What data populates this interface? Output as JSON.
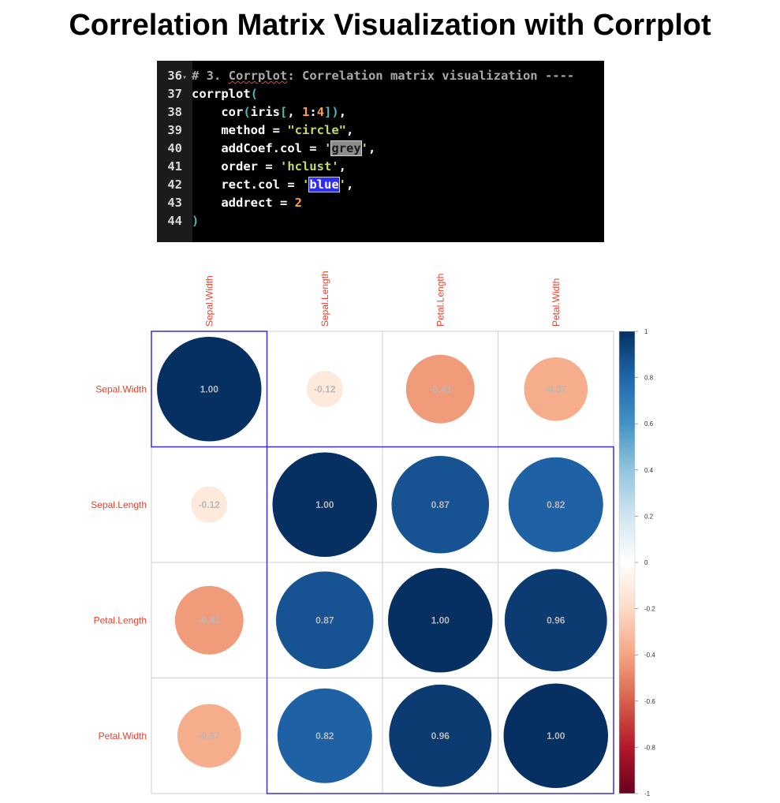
{
  "page": {
    "title": "Correlation Matrix Visualization with Corrplot"
  },
  "code_editor": {
    "lines": [
      {
        "num": "36",
        "fold": "▾",
        "tokens": [
          {
            "t": "# 3. ",
            "c": "tok-comment"
          },
          {
            "t": "Corrplot",
            "c": "tok-comment squiggle"
          },
          {
            "t": ": Correlation matrix visualization ----",
            "c": "tok-comment"
          }
        ]
      },
      {
        "num": "37",
        "fold": "",
        "tokens": [
          {
            "t": "corrplot",
            "c": "tok-plain"
          },
          {
            "t": "(",
            "c": "tok-paren"
          }
        ]
      },
      {
        "num": "38",
        "fold": "",
        "tokens": [
          {
            "t": "    cor",
            "c": "tok-plain"
          },
          {
            "t": "(",
            "c": "tok-paren"
          },
          {
            "t": "iris",
            "c": "tok-plain"
          },
          {
            "t": "[",
            "c": "tok-paren"
          },
          {
            "t": ", ",
            "c": "tok-plain"
          },
          {
            "t": "1",
            "c": "tok-number"
          },
          {
            "t": ":",
            "c": "tok-plain"
          },
          {
            "t": "4",
            "c": "tok-number"
          },
          {
            "t": "])",
            "c": "tok-paren"
          },
          {
            "t": ",",
            "c": "tok-plain"
          }
        ]
      },
      {
        "num": "39",
        "fold": "",
        "tokens": [
          {
            "t": "    method = ",
            "c": "tok-plain"
          },
          {
            "t": "\"circle\"",
            "c": "tok-string"
          },
          {
            "t": ",",
            "c": "tok-plain"
          }
        ]
      },
      {
        "num": "40",
        "fold": "",
        "tokens": [
          {
            "t": "    addCoef.col = ",
            "c": "tok-plain"
          },
          {
            "t": "'",
            "c": "tok-string"
          },
          {
            "t": "grey",
            "c": "hl-grey"
          },
          {
            "t": "'",
            "c": "tok-string"
          },
          {
            "t": ",",
            "c": "tok-plain"
          }
        ]
      },
      {
        "num": "41",
        "fold": "",
        "tokens": [
          {
            "t": "    order = ",
            "c": "tok-plain"
          },
          {
            "t": "'hclust'",
            "c": "tok-string"
          },
          {
            "t": ",",
            "c": "tok-plain"
          }
        ]
      },
      {
        "num": "42",
        "fold": "",
        "tokens": [
          {
            "t": "    rect.col = ",
            "c": "tok-plain"
          },
          {
            "t": "'",
            "c": "tok-string"
          },
          {
            "t": "blue",
            "c": "hl-blue"
          },
          {
            "t": "'",
            "c": "tok-string"
          },
          {
            "t": ",",
            "c": "tok-plain"
          }
        ]
      },
      {
        "num": "43",
        "fold": "",
        "tokens": [
          {
            "t": "    addrect = ",
            "c": "tok-plain"
          },
          {
            "t": "2",
            "c": "tok-number"
          }
        ]
      },
      {
        "num": "44",
        "fold": "",
        "tokens": [
          {
            "t": ")",
            "c": "tok-paren"
          }
        ]
      }
    ]
  },
  "chart_data": {
    "type": "heatmap",
    "variables": [
      "Sepal.Width",
      "Sepal.Length",
      "Petal.Length",
      "Petal.Width"
    ],
    "matrix": [
      [
        1.0,
        -0.12,
        -0.43,
        -0.37
      ],
      [
        -0.12,
        1.0,
        0.87,
        0.82
      ],
      [
        -0.43,
        0.87,
        1.0,
        0.96
      ],
      [
        -0.37,
        0.82,
        0.96,
        1.0
      ]
    ],
    "coef_labels": [
      [
        "1.00",
        "-0.12",
        "-0.43",
        "-0.37"
      ],
      [
        "-0.12",
        "1.00",
        "0.87",
        "0.82"
      ],
      [
        "-0.43",
        "0.87",
        "1.00",
        "0.96"
      ],
      [
        "-0.37",
        "0.82",
        "0.96",
        "1.00"
      ]
    ],
    "method": "circle",
    "coef_color": "#b8b8b8",
    "label_color": "#e8412c",
    "clusters": [
      [
        0,
        0
      ],
      [
        1,
        3
      ]
    ],
    "rect_color": "#3a2fe0",
    "grid_color": "#cfcfcf",
    "colorbar": {
      "ticks": [
        "1",
        "0.8",
        "0.6",
        "0.4",
        "0.2",
        "0",
        "-0.2",
        "-0.4",
        "-0.6",
        "-0.8",
        "-1"
      ],
      "range": [
        -1,
        1
      ],
      "palette": [
        "#67001f",
        "#b2182b",
        "#d6604d",
        "#f4a582",
        "#fddbc7",
        "#ffffff",
        "#d1e5f0",
        "#92c5de",
        "#4393c3",
        "#2166ac",
        "#053061"
      ]
    }
  }
}
